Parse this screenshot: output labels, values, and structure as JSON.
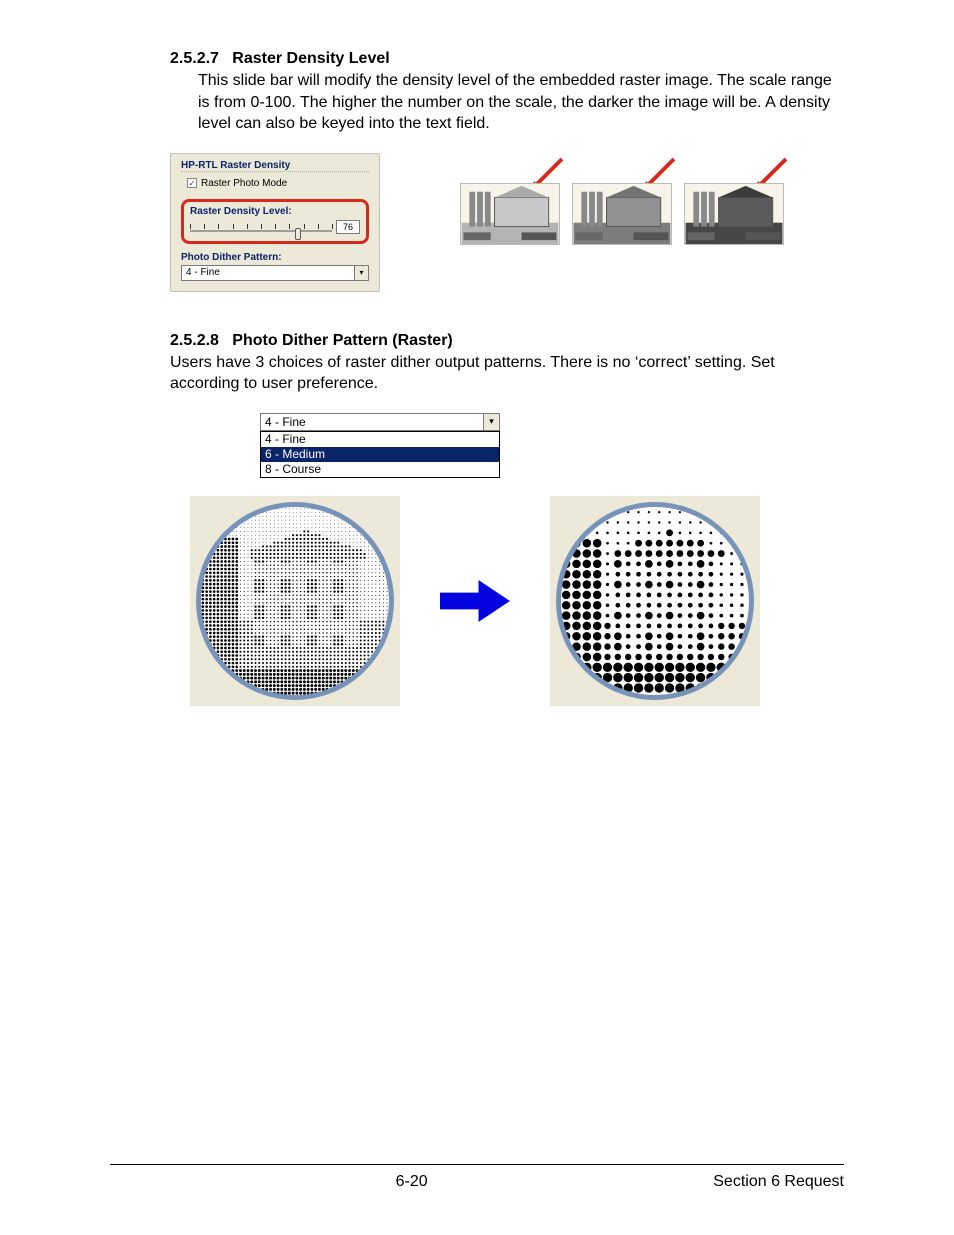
{
  "sections": {
    "s1": {
      "num": "2.5.2.7",
      "title": "Raster Density Level",
      "body": "This slide bar will modify the density level of the embedded raster image. The scale range is from 0-100.  The higher the number on the scale, the darker the image will be.   A density level can also be keyed into the text field."
    },
    "s2": {
      "num": "2.5.2.8",
      "title": "Photo Dither Pattern (Raster)",
      "body": "Users have 3 choices of raster dither output patterns. There is no ‘correct’ setting.  Set according to user preference."
    }
  },
  "panel": {
    "group_title": "HP-RTL Raster Density",
    "checkbox_label": "Raster Photo Mode",
    "checkbox_checked": true,
    "density_label": "Raster Density Level:",
    "slider_min": 0,
    "slider_max": 100,
    "slider_value": 76,
    "tick_count": 10,
    "pattern_label": "Photo Dither Pattern:",
    "pattern_value": "4 - Fine",
    "highlight_color": "#d9291c",
    "bg": "#ece9d8",
    "label_color": "#0a246a"
  },
  "thumbs": {
    "arrow_color": "#d9291c",
    "count": 3
  },
  "dropdown": {
    "selected": "4 - Fine",
    "options": [
      "4 - Fine",
      "6 - Medium",
      "8 - Course"
    ],
    "highlight_index": 1,
    "highlight_bg": "#0a246a",
    "highlight_fg": "#ffffff"
  },
  "circles": {
    "ring_color": "#7893b9",
    "card_bg": "#ece9d8",
    "arrow_color": "#0404e0",
    "fine_dot_r": 1.0,
    "coarse_dot_r": 3.2,
    "fine_step": 4,
    "coarse_step": 11
  },
  "footer": {
    "page": "6-20",
    "section": "Section 6    Request"
  }
}
